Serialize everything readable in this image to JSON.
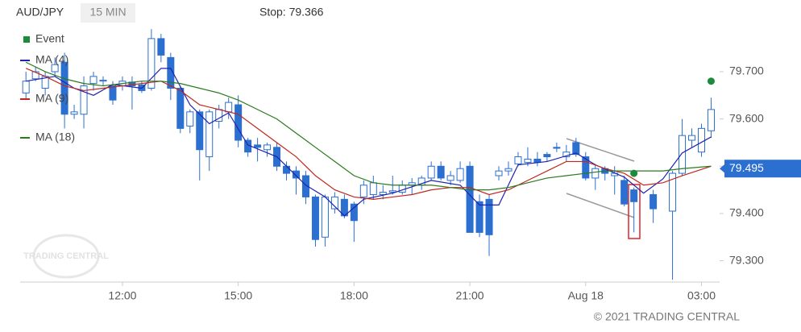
{
  "chart_data": {
    "type": "candlestick",
    "title": "AUD/JPY",
    "subtitle": "15 MIN",
    "stop_label": "Stop: 79.366",
    "watermark": "TRADING CENTRAL",
    "copyright": "© 2021 TRADING CENTRAL",
    "xlim": [
      9.35,
      27.47
    ],
    "ylim": [
      79.255,
      79.792
    ],
    "xticks": [
      {
        "value": 12,
        "label": "12:00"
      },
      {
        "value": 15,
        "label": "15:00"
      },
      {
        "value": 18,
        "label": "18:00"
      },
      {
        "value": 21,
        "label": "21:00"
      },
      {
        "value": 24,
        "label": "Aug 18"
      },
      {
        "value": 27,
        "label": "03:00"
      }
    ],
    "yticks": [
      {
        "value": 79.3,
        "label": "79.300"
      },
      {
        "value": 79.4,
        "label": "79.400"
      },
      79.5,
      {
        "value": 79.6,
        "label": "79.600"
      },
      {
        "value": 79.7,
        "label": "79.700"
      }
    ],
    "last_price": 79.495,
    "last_price_color": "#2b6fd0",
    "candles": {
      "up_color": "#ffffff",
      "down_color": "#2b6fd0",
      "edge_color": "#2b6fd0",
      "x": [
        9.5,
        9.75,
        10,
        10.25,
        10.5,
        10.75,
        11,
        11.25,
        11.5,
        11.75,
        12,
        12.25,
        12.5,
        12.75,
        13,
        13.25,
        13.5,
        13.75,
        14,
        14.25,
        14.5,
        14.75,
        15,
        15.25,
        15.5,
        15.75,
        16,
        16.25,
        16.5,
        16.75,
        17,
        17.25,
        17.5,
        17.75,
        18,
        18.25,
        18.5,
        18.75,
        19,
        19.25,
        19.5,
        19.75,
        20,
        20.25,
        20.5,
        20.75,
        21,
        21.25,
        21.5,
        21.75,
        22,
        22.25,
        22.5,
        22.75,
        23,
        23.25,
        23.5,
        23.75,
        24,
        24.25,
        24.5,
        24.75,
        25,
        25.25,
        25.75,
        26.25,
        26.5,
        26.75,
        27,
        27.25
      ],
      "open": [
        79.655,
        79.685,
        79.665,
        79.7,
        79.72,
        79.61,
        79.61,
        79.675,
        79.68,
        79.67,
        79.67,
        79.678,
        79.672,
        79.665,
        79.77,
        79.73,
        79.665,
        79.585,
        79.615,
        79.52,
        79.595,
        79.615,
        79.63,
        79.555,
        79.545,
        79.535,
        79.54,
        79.5,
        79.49,
        79.48,
        79.435,
        79.35,
        79.41,
        79.43,
        79.42,
        79.435,
        79.44,
        79.44,
        79.445,
        79.445,
        79.46,
        79.46,
        79.475,
        79.5,
        79.47,
        79.47,
        79.5,
        79.425,
        79.43,
        79.48,
        79.49,
        79.505,
        79.508,
        79.515,
        79.525,
        79.54,
        79.52,
        79.55,
        79.52,
        79.475,
        79.495,
        79.48,
        79.47,
        79.45,
        79.44,
        79.405,
        79.485,
        79.555,
        79.53,
        79.575
      ],
      "high": [
        79.7,
        79.71,
        79.7,
        79.73,
        79.74,
        79.63,
        79.69,
        79.7,
        79.69,
        79.68,
        79.69,
        79.69,
        79.68,
        79.79,
        79.78,
        79.74,
        79.67,
        79.62,
        79.62,
        79.62,
        79.63,
        79.645,
        79.65,
        79.56,
        79.56,
        79.55,
        79.55,
        79.51,
        79.5,
        79.49,
        79.44,
        79.44,
        79.445,
        79.44,
        79.425,
        79.47,
        79.48,
        79.46,
        79.48,
        79.47,
        79.475,
        79.48,
        79.51,
        79.51,
        79.49,
        79.51,
        79.51,
        79.44,
        79.44,
        79.5,
        79.51,
        79.53,
        79.54,
        79.53,
        79.53,
        79.55,
        79.545,
        79.56,
        79.53,
        79.505,
        79.5,
        79.5,
        79.48,
        79.455,
        79.45,
        79.49,
        79.6,
        79.58,
        79.59,
        79.645
      ],
      "low": [
        79.64,
        79.68,
        79.65,
        79.69,
        79.58,
        79.6,
        79.58,
        79.66,
        79.67,
        79.63,
        79.66,
        79.62,
        79.655,
        79.66,
        79.72,
        79.64,
        79.57,
        79.57,
        79.47,
        79.49,
        79.58,
        79.6,
        79.54,
        79.52,
        79.51,
        79.52,
        79.49,
        79.47,
        79.44,
        79.42,
        79.33,
        79.33,
        79.4,
        79.39,
        79.34,
        79.42,
        79.43,
        79.43,
        79.44,
        79.44,
        79.44,
        79.45,
        79.47,
        79.47,
        79.46,
        79.465,
        79.36,
        79.35,
        79.31,
        79.47,
        79.48,
        79.5,
        79.5,
        79.5,
        79.51,
        79.53,
        79.51,
        79.52,
        79.47,
        79.45,
        79.47,
        79.44,
        79.415,
        79.36,
        79.38,
        79.26,
        79.48,
        79.54,
        79.52,
        79.56
      ],
      "close": [
        79.68,
        79.7,
        79.69,
        79.715,
        79.61,
        79.615,
        79.67,
        79.69,
        79.682,
        79.64,
        79.68,
        79.67,
        79.66,
        79.77,
        79.735,
        79.665,
        79.58,
        79.615,
        79.535,
        79.615,
        79.62,
        79.635,
        79.555,
        79.53,
        79.54,
        79.545,
        79.5,
        79.485,
        79.475,
        79.435,
        79.345,
        79.435,
        79.435,
        79.395,
        79.385,
        79.46,
        79.465,
        79.445,
        79.448,
        79.46,
        79.465,
        79.475,
        79.5,
        79.475,
        79.48,
        79.495,
        79.36,
        79.36,
        79.355,
        79.49,
        79.495,
        79.52,
        79.515,
        79.508,
        79.52,
        79.538,
        79.53,
        79.525,
        79.475,
        79.495,
        79.485,
        79.485,
        79.42,
        79.425,
        79.41,
        79.485,
        79.565,
        79.565,
        79.58,
        79.62
      ]
    },
    "events": {
      "name": "Event",
      "color": "#1e8a3c",
      "x": [
        25.25,
        27.25
      ],
      "values": [
        79.485,
        79.68
      ]
    },
    "series": [
      {
        "name": "MA (4)",
        "color": "#1f22b0",
        "x": [
          9.5,
          10.25,
          10.75,
          11.25,
          11.75,
          12.5,
          13,
          13.25,
          13.75,
          14.25,
          14.75,
          15.25,
          16,
          16.75,
          17.25,
          17.75,
          18.25,
          19,
          20,
          20.75,
          21.25,
          21.75,
          22.25,
          23,
          23.75,
          24.25,
          25,
          25.5,
          26,
          26.5,
          27.25
        ],
        "values": [
          79.68,
          79.69,
          79.665,
          79.65,
          79.673,
          79.665,
          79.707,
          79.707,
          79.63,
          79.59,
          79.613,
          79.545,
          79.52,
          79.46,
          79.435,
          79.395,
          79.43,
          79.443,
          79.47,
          79.46,
          79.418,
          79.418,
          79.503,
          79.51,
          79.528,
          79.503,
          79.477,
          79.443,
          79.473,
          79.528,
          79.562
        ]
      },
      {
        "name": "MA (9)",
        "color": "#c0281e",
        "x": [
          9.5,
          10,
          10.5,
          11,
          11.5,
          12,
          12.5,
          13,
          13.5,
          14,
          14.5,
          15,
          15.5,
          16,
          16.5,
          17,
          17.5,
          18,
          18.5,
          19,
          19.5,
          20,
          20.5,
          21,
          21.5,
          22,
          22.5,
          23,
          23.5,
          24,
          24.5,
          25,
          25.5,
          26,
          26.5,
          27.25
        ],
        "values": [
          79.707,
          79.69,
          79.67,
          79.66,
          79.665,
          79.67,
          79.675,
          79.68,
          79.66,
          79.63,
          79.62,
          79.61,
          79.58,
          79.55,
          79.52,
          79.48,
          79.45,
          79.435,
          79.43,
          79.435,
          79.44,
          79.45,
          79.455,
          79.455,
          79.44,
          79.45,
          79.47,
          79.49,
          79.51,
          79.51,
          79.495,
          79.485,
          79.46,
          79.465,
          79.48,
          79.5
        ]
      },
      {
        "name": "MA (18)",
        "color": "#2a7a1e",
        "x": [
          9.5,
          10,
          10.5,
          11,
          11.5,
          12,
          12.5,
          13,
          13.5,
          14,
          14.5,
          15,
          15.5,
          16,
          16.5,
          17,
          17.5,
          18,
          18.5,
          19,
          19.5,
          20,
          20.5,
          21,
          21.5,
          22,
          22.5,
          23,
          23.5,
          24,
          24.5,
          25,
          25.5,
          26,
          26.5,
          27.25
        ],
        "values": [
          79.72,
          79.7,
          79.685,
          79.675,
          79.67,
          79.675,
          79.68,
          79.68,
          79.675,
          79.665,
          79.655,
          79.64,
          79.62,
          79.6,
          79.57,
          79.54,
          79.51,
          79.48,
          79.465,
          79.46,
          79.46,
          79.46,
          79.455,
          79.45,
          79.45,
          79.455,
          79.465,
          79.475,
          79.48,
          79.485,
          79.49,
          79.49,
          79.49,
          79.49,
          79.495,
          79.5
        ]
      }
    ]
  }
}
